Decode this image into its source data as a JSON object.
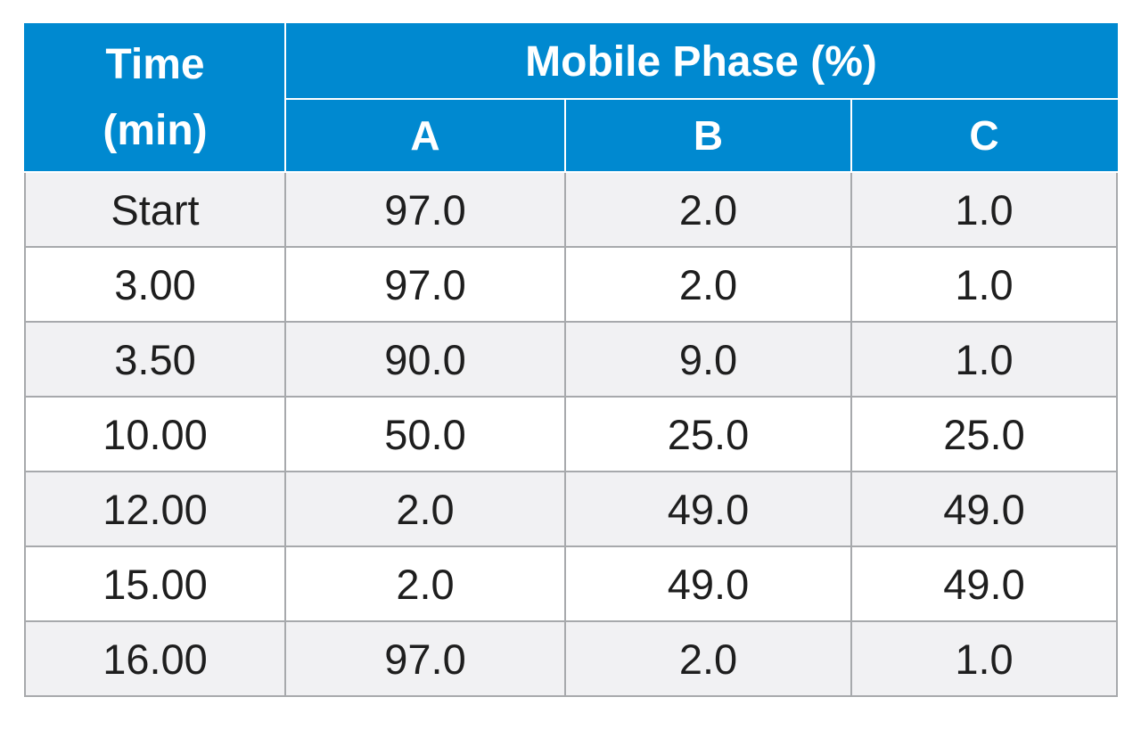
{
  "table": {
    "header": {
      "time_line1": "Time",
      "time_line2": "(min)",
      "group_label": "Mobile Phase (%)",
      "columns": [
        "A",
        "B",
        "C"
      ]
    },
    "rows": [
      {
        "time": "Start",
        "a": "97.0",
        "b": "2.0",
        "c": "1.0"
      },
      {
        "time": "3.00",
        "a": "97.0",
        "b": "2.0",
        "c": "1.0"
      },
      {
        "time": "3.50",
        "a": "90.0",
        "b": "9.0",
        "c": "1.0"
      },
      {
        "time": "10.00",
        "a": "50.0",
        "b": "25.0",
        "c": "25.0"
      },
      {
        "time": "12.00",
        "a": "2.0",
        "b": "49.0",
        "c": "49.0"
      },
      {
        "time": "15.00",
        "a": "2.0",
        "b": "49.0",
        "c": "49.0"
      },
      {
        "time": "16.00",
        "a": "97.0",
        "b": "2.0",
        "c": "1.0"
      }
    ]
  },
  "colors": {
    "header_bg": "#0089d0",
    "header_text": "#ffffff",
    "row_shade": "#f1f1f3",
    "grid": "#a7a9ac"
  }
}
